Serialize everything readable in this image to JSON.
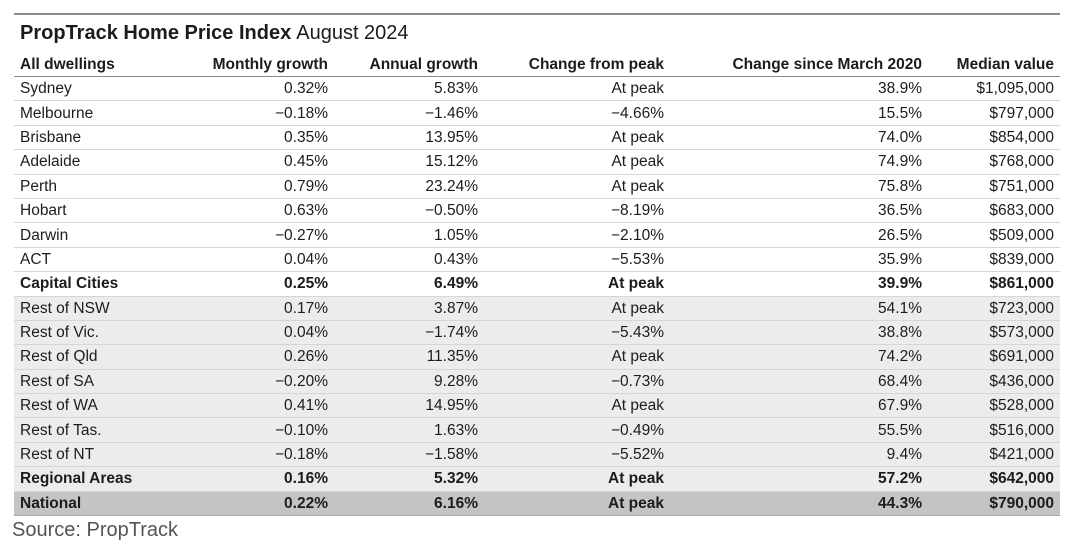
{
  "title": {
    "main": "PropTrack Home Price Index",
    "sub": "August 2024"
  },
  "headers": [
    "All dwellings",
    "Monthly growth",
    "Annual growth",
    "Change from peak",
    "Change since March 2020",
    "Median value"
  ],
  "rows": [
    {
      "cells": [
        "Sydney",
        "0.32%",
        "5.83%",
        "At peak",
        "38.9%",
        "$1,095,000"
      ],
      "style": "normal"
    },
    {
      "cells": [
        "Melbourne",
        "−0.18%",
        "−1.46%",
        "−4.66%",
        "15.5%",
        "$797,000"
      ],
      "style": "normal"
    },
    {
      "cells": [
        "Brisbane",
        "0.35%",
        "13.95%",
        "At peak",
        "74.0%",
        "$854,000"
      ],
      "style": "normal"
    },
    {
      "cells": [
        "Adelaide",
        "0.45%",
        "15.12%",
        "At peak",
        "74.9%",
        "$768,000"
      ],
      "style": "normal"
    },
    {
      "cells": [
        "Perth",
        "0.79%",
        "23.24%",
        "At peak",
        "75.8%",
        "$751,000"
      ],
      "style": "normal"
    },
    {
      "cells": [
        "Hobart",
        "0.63%",
        "−0.50%",
        "−8.19%",
        "36.5%",
        "$683,000"
      ],
      "style": "normal"
    },
    {
      "cells": [
        "Darwin",
        "−0.27%",
        "1.05%",
        "−2.10%",
        "26.5%",
        "$509,000"
      ],
      "style": "normal"
    },
    {
      "cells": [
        "ACT",
        "0.04%",
        "0.43%",
        "−5.53%",
        "35.9%",
        "$839,000"
      ],
      "style": "normal"
    },
    {
      "cells": [
        "Capital Cities",
        "0.25%",
        "6.49%",
        "At peak",
        "39.9%",
        "$861,000"
      ],
      "style": "bold"
    },
    {
      "cells": [
        "Rest of NSW",
        "0.17%",
        "3.87%",
        "At peak",
        "54.1%",
        "$723,000"
      ],
      "style": "shade"
    },
    {
      "cells": [
        "Rest of Vic.",
        "0.04%",
        "−1.74%",
        "−5.43%",
        "38.8%",
        "$573,000"
      ],
      "style": "shade"
    },
    {
      "cells": [
        "Rest of Qld",
        "0.26%",
        "11.35%",
        "At peak",
        "74.2%",
        "$691,000"
      ],
      "style": "shade"
    },
    {
      "cells": [
        "Rest of SA",
        "−0.20%",
        "9.28%",
        "−0.73%",
        "68.4%",
        "$436,000"
      ],
      "style": "shade"
    },
    {
      "cells": [
        "Rest of WA",
        "0.41%",
        "14.95%",
        "At peak",
        "67.9%",
        "$528,000"
      ],
      "style": "shade"
    },
    {
      "cells": [
        "Rest of Tas.",
        "−0.10%",
        "1.63%",
        "−0.49%",
        "55.5%",
        "$516,000"
      ],
      "style": "shade"
    },
    {
      "cells": [
        "Rest of NT",
        "−0.18%",
        "−1.58%",
        "−5.52%",
        "9.4%",
        "$421,000"
      ],
      "style": "shade"
    },
    {
      "cells": [
        "Regional Areas",
        "0.16%",
        "5.32%",
        "At peak",
        "57.2%",
        "$642,000"
      ],
      "style": "shade-bold"
    },
    {
      "cells": [
        "National",
        "0.22%",
        "6.16%",
        "At peak",
        "44.3%",
        "$790,000"
      ],
      "style": "national"
    }
  ],
  "source": "Source: PropTrack",
  "colors": {
    "shade": "#ececec",
    "national": "#c4c4c4",
    "rule": "#8a8a8a"
  }
}
